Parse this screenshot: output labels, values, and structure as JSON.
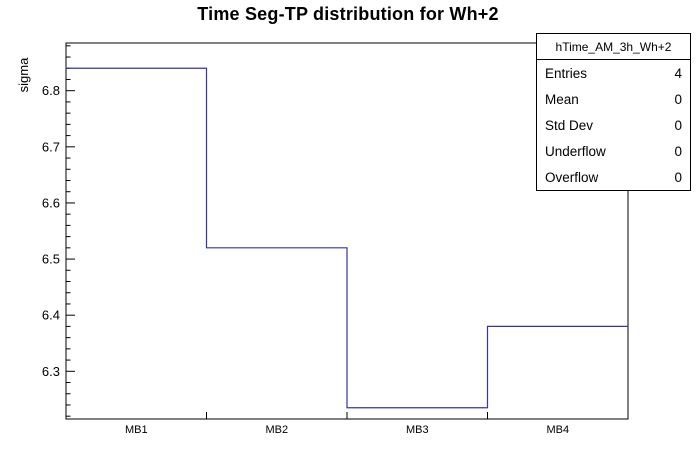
{
  "title": "Time Seg-TP distribution for Wh+2",
  "colors": {
    "hist_line": "#3333aa",
    "frame": "#000000",
    "background": "#ffffff",
    "text": "#000000"
  },
  "chart_data": {
    "type": "line",
    "subtype": "step-histogram",
    "title": "Time Seg-TP distribution for Wh+2",
    "xlabel": "",
    "ylabel": "sigma",
    "categories": [
      "MB1",
      "MB2",
      "MB3",
      "MB4"
    ],
    "values": [
      6.84,
      6.52,
      6.235,
      6.38
    ],
    "ylim": [
      6.215,
      6.885
    ],
    "y_major_ticks": [
      6.3,
      6.4,
      6.5,
      6.6,
      6.7,
      6.8
    ],
    "y_minor_step": 0.02,
    "grid": false,
    "legend": "none"
  },
  "stats_box": {
    "header": "hTime_AM_3h_Wh+2",
    "rows": [
      {
        "label": "Entries",
        "value": "4"
      },
      {
        "label": "Mean",
        "value": "0"
      },
      {
        "label": "Std Dev",
        "value": "0"
      },
      {
        "label": "Underflow",
        "value": "0"
      },
      {
        "label": "Overflow",
        "value": "0"
      }
    ]
  }
}
